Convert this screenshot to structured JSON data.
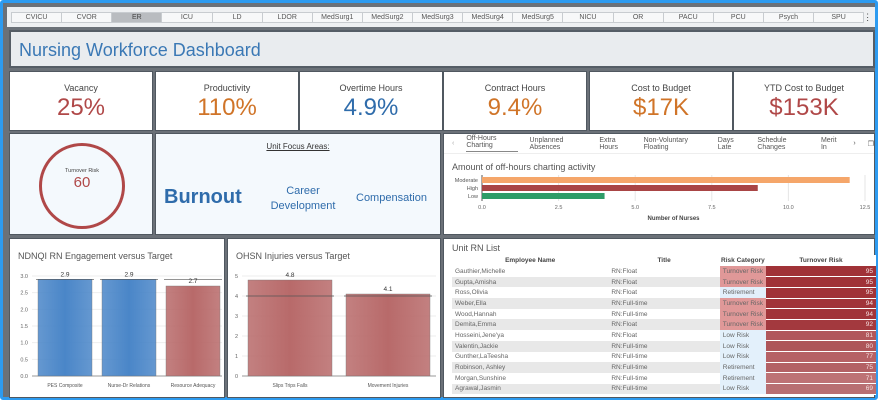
{
  "unit_tabs": [
    "CVICU",
    "CVOR",
    "ER",
    "ICU",
    "LD",
    "LDOR",
    "MedSurg1",
    "MedSurg2",
    "MedSurg3",
    "MedSurg4",
    "MedSurg5",
    "NICU",
    "OR",
    "PACU",
    "PCU",
    "Psych",
    "SPU"
  ],
  "selected_unit": "ER",
  "header": {
    "title": "Nursing Workforce Dashboard"
  },
  "kpis": [
    {
      "label": "Vacancy",
      "value": "25%",
      "color": "#b04848"
    },
    {
      "label": "Productivity",
      "value": "110%",
      "color": "#d07428"
    },
    {
      "label": "Overtime Hours",
      "value": "4.9%",
      "color": "#2f6cab"
    },
    {
      "label": "Contract Hours",
      "value": "9.4%",
      "color": "#d07428"
    },
    {
      "label": "Cost to Budget",
      "value": "$17K",
      "color": "#d07428"
    },
    {
      "label": "YTD Cost to Budget",
      "value": "$153K",
      "color": "#b04848"
    }
  ],
  "turnover_gauge": {
    "label": "Turnover Risk",
    "value": "60",
    "color": "#b04848"
  },
  "focus": {
    "heading": "Unit Focus Areas:",
    "items": [
      "Burnout",
      "Career Development",
      "Compensation"
    ]
  },
  "detail_tabs": [
    "Off-Hours Charting",
    "Unplanned Absences",
    "Extra Hours",
    "Non-Voluntary Floating",
    "Days Late",
    "Schedule Changes",
    "Merit In"
  ],
  "chart_data": [
    {
      "type": "bar",
      "orientation": "horizontal",
      "title": "Amount of off-hours charting activity",
      "categories": [
        "Moderate",
        "High",
        "Low"
      ],
      "values": [
        12,
        9,
        4
      ],
      "colors": [
        "#f5a66a",
        "#a94545",
        "#2e9c68"
      ],
      "xlabel": "Number of Nurses",
      "xlim": [
        0,
        12.5
      ],
      "xticks": [
        "0.0",
        "2.5",
        "5.0",
        "7.5",
        "10.0",
        "12.5"
      ]
    },
    {
      "type": "bar",
      "title": "NDNQI RN Engagement versus Target",
      "categories": [
        "PES Composite",
        "Nurse-Dr Relations",
        "Resource Adequacy"
      ],
      "values": [
        2.9,
        2.9,
        2.7
      ],
      "targets": [
        2.9,
        2.9,
        2.9
      ],
      "colors": [
        "#4a86c8",
        "#4a86c8",
        "#b86a6a"
      ],
      "ylim": [
        0,
        3.0
      ],
      "yticks": [
        "0.0",
        "0.5",
        "1.0",
        "1.5",
        "2.0",
        "2.5",
        "3.0"
      ],
      "labels": [
        "2.9",
        "2.9",
        "2.7"
      ]
    },
    {
      "type": "bar",
      "title": "OHSN Injuries versus Target",
      "categories": [
        "Slips Trips Falls",
        "Movement Injuries"
      ],
      "values": [
        4.8,
        4.1
      ],
      "targets": [
        4,
        4
      ],
      "colors": [
        "#b86a6a",
        "#b86a6a"
      ],
      "ylim": [
        0,
        5
      ],
      "yticks": [
        "0",
        "1",
        "2",
        "3",
        "4",
        "5"
      ],
      "labels": [
        "4.8",
        "4.1"
      ]
    }
  ],
  "rn_list": {
    "title": "Unit RN List",
    "columns": [
      "Employee Name",
      "Title",
      "Risk Category",
      "Turnover Risk"
    ],
    "rows": [
      [
        "Gauthier,Michelle",
        "RN:Float",
        "Turnover Risk",
        "95"
      ],
      [
        "Gupta,Amisha",
        "RN:Float",
        "Turnover Risk",
        "95"
      ],
      [
        "Ross,Olivia",
        "RN:Float",
        "Retirement",
        "95"
      ],
      [
        "Weber,Ella",
        "RN:Full-time",
        "Turnover Risk",
        "94"
      ],
      [
        "Wood,Hannah",
        "RN:Full-time",
        "Turnover Risk",
        "94"
      ],
      [
        "Demita,Emma",
        "RN:Float",
        "Turnover Risk",
        "92"
      ],
      [
        "Hosseini,Jene'ya",
        "RN:Float",
        "Low Risk",
        "81"
      ],
      [
        "Valentin,Jackie",
        "RN:Full-time",
        "Low Risk",
        "80"
      ],
      [
        "Gunther,LaTeesha",
        "RN:Full-time",
        "Low Risk",
        "77"
      ],
      [
        "Robinson, Ashley",
        "RN:Full-time",
        "Retirement",
        "75"
      ],
      [
        "Morgan,Sunshine",
        "RN:Full-time",
        "Retirement",
        "71"
      ],
      [
        "Agrawal,Jasmin",
        "RN:Full-time",
        "Low Risk",
        "69"
      ]
    ]
  }
}
